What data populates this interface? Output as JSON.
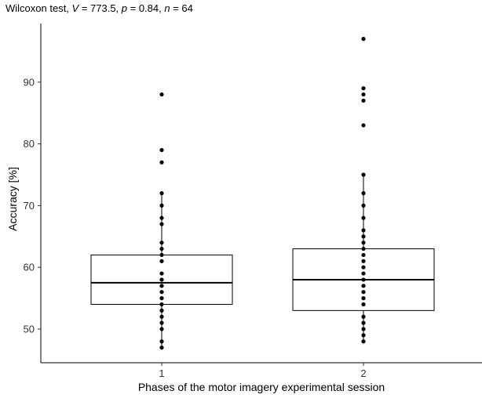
{
  "chart_data": {
    "type": "boxplot",
    "title": {
      "prefix": "Wilcoxon test, ",
      "v_symbol": "V",
      "v_text": " = 773.5, ",
      "p_symbol": "p",
      "p_text": " = 0.84, ",
      "n_symbol": "n",
      "n_text": " = 64"
    },
    "xlabel": "Phases of the motor imagery experimental session",
    "ylabel": "Accuracy [%]",
    "ylim": [
      45,
      99
    ],
    "y_ticks": [
      "50",
      "60",
      "70",
      "80",
      "90"
    ],
    "categories": [
      "1",
      "2"
    ],
    "grid": false,
    "boxes": [
      {
        "category": "1",
        "q1": 54,
        "median": 57.5,
        "q3": 62,
        "whisker_low": 47,
        "whisker_high": 72,
        "points": [
          47,
          48,
          50,
          51,
          52,
          53,
          54,
          55,
          56,
          57,
          58,
          59,
          61,
          62,
          63,
          64,
          67,
          68,
          70,
          72,
          77,
          79,
          88
        ]
      },
      {
        "category": "2",
        "q1": 53,
        "median": 58,
        "q3": 63,
        "whisker_low": 48,
        "whisker_high": 75,
        "points": [
          48,
          49,
          50,
          51,
          52,
          54,
          55,
          56,
          57,
          58,
          59,
          60,
          61,
          62,
          63,
          64,
          65,
          66,
          68,
          70,
          72,
          75,
          83,
          87,
          88,
          89,
          97
        ]
      }
    ]
  }
}
